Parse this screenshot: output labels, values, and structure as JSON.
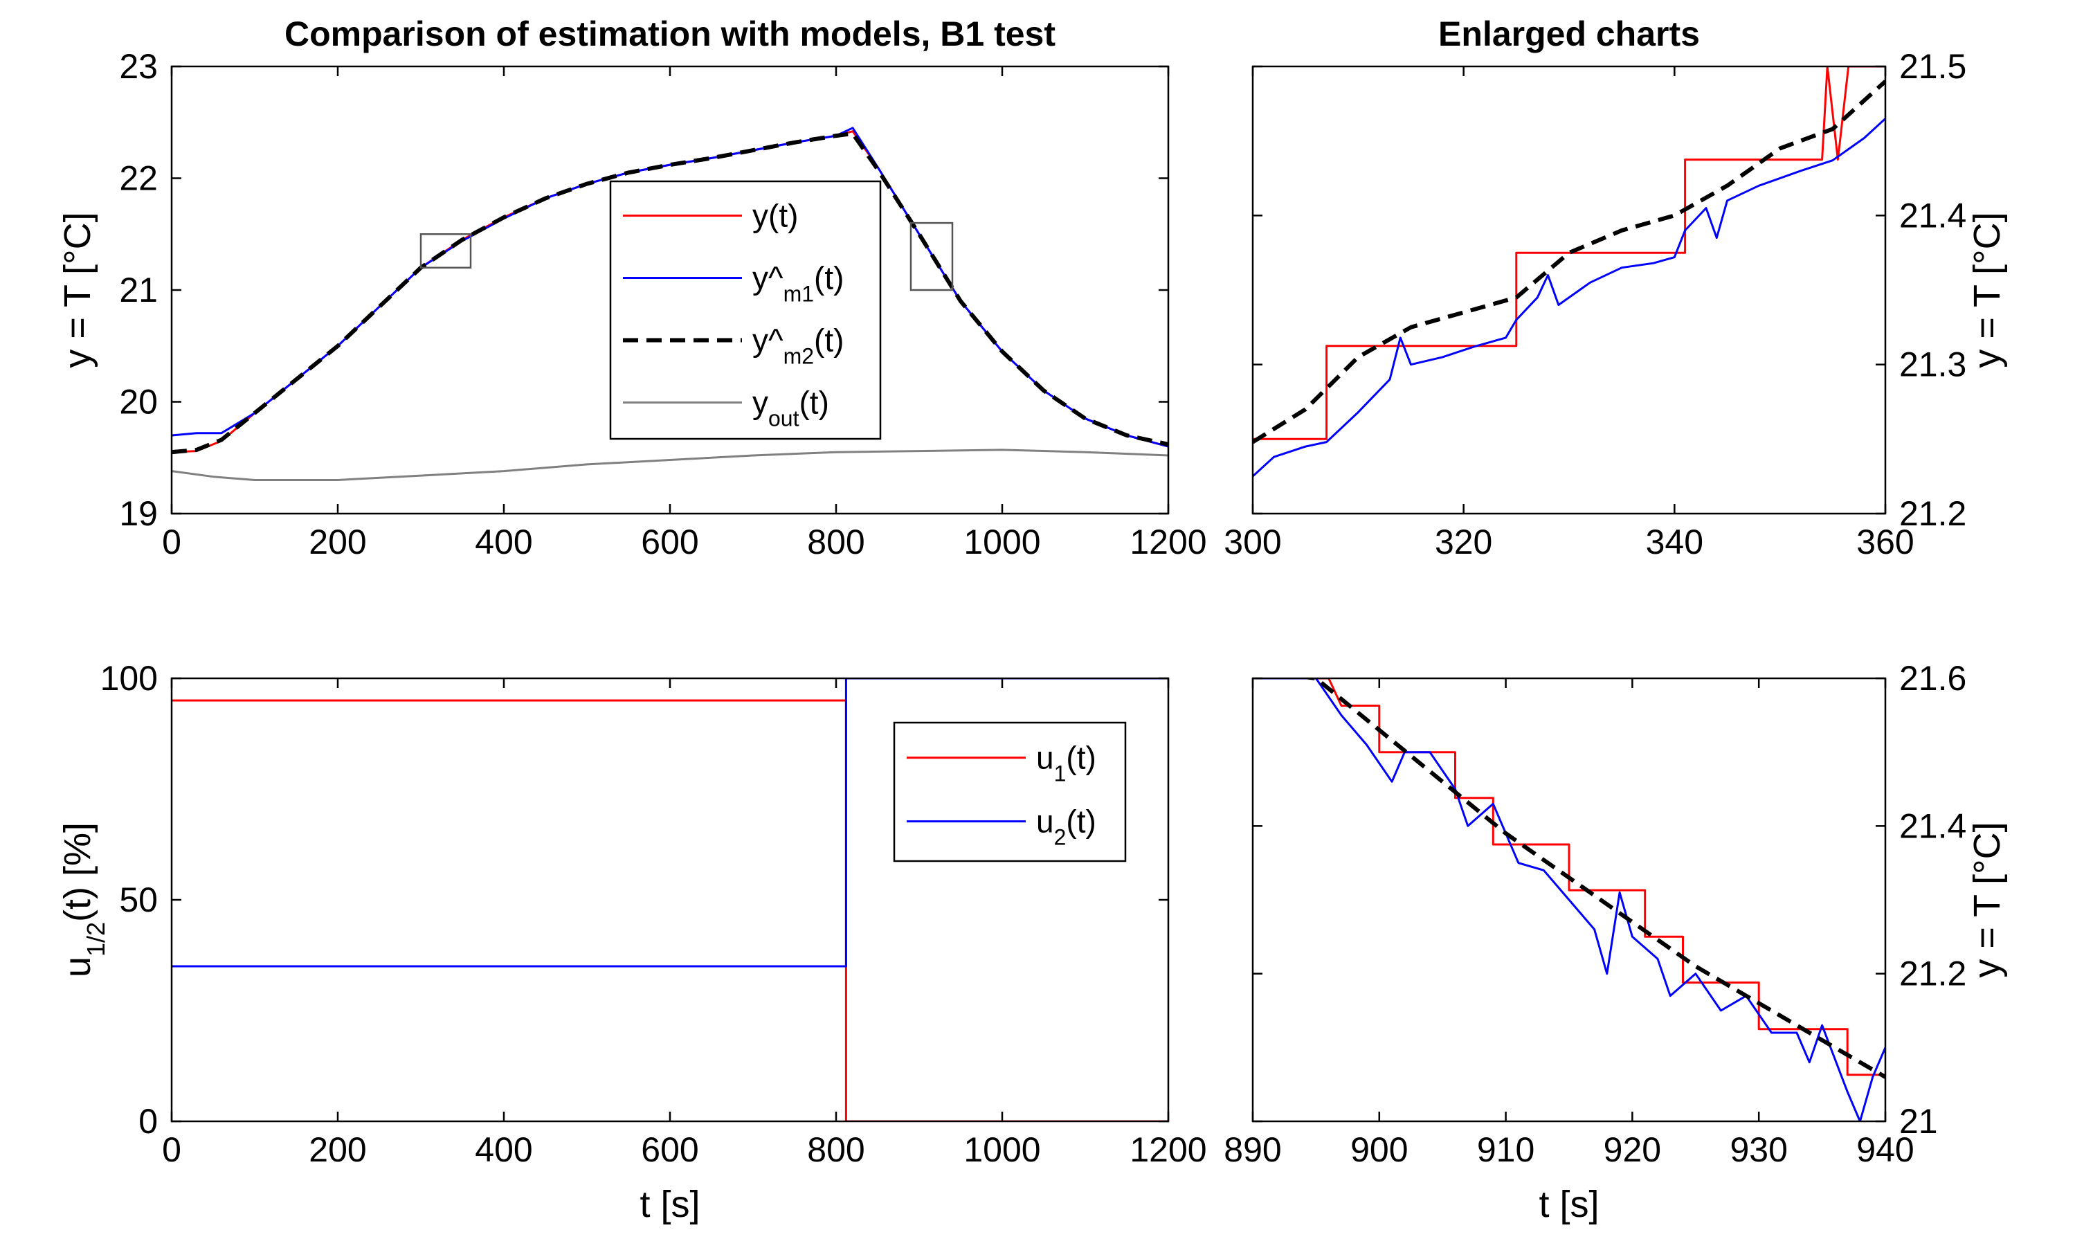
{
  "chart_data": [
    {
      "id": "top-left",
      "type": "line",
      "title": "Comparison of estimation with models, B1 test",
      "ylabel": "y = T [°C]",
      "xlabel": "",
      "xlim": [
        0,
        1200
      ],
      "ylim": [
        19,
        23
      ],
      "xticks": [
        0,
        200,
        400,
        600,
        800,
        1000,
        1200
      ],
      "yticks": [
        19,
        20,
        21,
        22,
        23
      ],
      "legend_position": "center",
      "legend": [
        "y(t)",
        "y^m1(t)",
        "y^m2(t)",
        "yout(t)"
      ],
      "zoom_boxes": [
        {
          "x": [
            300,
            360
          ],
          "y": [
            21.2,
            21.5
          ]
        },
        {
          "x": [
            890,
            940
          ],
          "y": [
            21.0,
            21.6
          ]
        }
      ],
      "series": [
        {
          "name": "y(t)",
          "color": "#ff0000",
          "style": "solid",
          "x": [
            0,
            30,
            60,
            100,
            150,
            200,
            250,
            300,
            350,
            400,
            450,
            500,
            550,
            600,
            650,
            700,
            750,
            800,
            820,
            850,
            900,
            950,
            1000,
            1050,
            1100,
            1150,
            1200
          ],
          "y": [
            19.55,
            19.56,
            19.65,
            19.9,
            20.2,
            20.5,
            20.85,
            21.2,
            21.45,
            21.65,
            21.82,
            21.95,
            22.05,
            22.12,
            22.18,
            22.25,
            22.32,
            22.38,
            22.42,
            22.1,
            21.5,
            20.9,
            20.45,
            20.1,
            19.85,
            19.7,
            19.6
          ]
        },
        {
          "name": "y^m1(t)",
          "color": "#0000ff",
          "style": "solid",
          "x": [
            0,
            30,
            60,
            100,
            150,
            200,
            250,
            300,
            350,
            400,
            450,
            500,
            550,
            600,
            650,
            700,
            750,
            800,
            820,
            850,
            900,
            950,
            1000,
            1050,
            1100,
            1150,
            1200
          ],
          "y": [
            19.7,
            19.72,
            19.72,
            19.9,
            20.2,
            20.5,
            20.85,
            21.2,
            21.44,
            21.64,
            21.82,
            21.95,
            22.05,
            22.12,
            22.18,
            22.25,
            22.32,
            22.38,
            22.45,
            22.1,
            21.5,
            20.9,
            20.45,
            20.1,
            19.85,
            19.7,
            19.6
          ]
        },
        {
          "name": "y^m2(t)",
          "color": "#000000",
          "style": "dashed",
          "x": [
            0,
            30,
            60,
            100,
            150,
            200,
            250,
            300,
            350,
            400,
            450,
            500,
            550,
            600,
            650,
            700,
            750,
            800,
            820,
            850,
            900,
            950,
            1000,
            1050,
            1100,
            1150,
            1200
          ],
          "y": [
            19.55,
            19.57,
            19.66,
            19.9,
            20.2,
            20.5,
            20.85,
            21.2,
            21.45,
            21.65,
            21.82,
            21.95,
            22.05,
            22.12,
            22.18,
            22.25,
            22.32,
            22.38,
            22.4,
            22.08,
            21.5,
            20.9,
            20.45,
            20.1,
            19.85,
            19.7,
            19.62
          ]
        },
        {
          "name": "yout(t)",
          "color": "#808080",
          "style": "solid",
          "x": [
            0,
            50,
            100,
            200,
            300,
            400,
            500,
            600,
            700,
            800,
            900,
            1000,
            1100,
            1200
          ],
          "y": [
            19.38,
            19.33,
            19.3,
            19.3,
            19.34,
            19.38,
            19.44,
            19.48,
            19.52,
            19.55,
            19.56,
            19.57,
            19.55,
            19.52
          ]
        }
      ]
    },
    {
      "id": "top-right",
      "type": "line",
      "title": "Enlarged charts",
      "ylabel": "y = T [°C]",
      "xlabel": "",
      "xlim": [
        300,
        360
      ],
      "ylim": [
        21.2,
        21.5
      ],
      "xticks": [
        300,
        320,
        340,
        360
      ],
      "yticks": [
        21.2,
        21.3,
        21.4,
        21.5
      ],
      "series": [
        {
          "name": "y(t)",
          "color": "#ff0000",
          "style": "solid",
          "x": [
            300,
            307,
            307,
            325,
            325,
            341,
            341,
            354,
            354.5,
            355.5,
            356.5,
            360
          ],
          "y": [
            21.25,
            21.25,
            21.3125,
            21.3125,
            21.375,
            21.375,
            21.4375,
            21.4375,
            21.5,
            21.4375,
            21.5,
            21.5
          ]
        },
        {
          "name": "y^m1(t)",
          "color": "#0000ff",
          "style": "solid",
          "x": [
            300,
            302,
            305,
            307,
            310,
            313,
            314,
            315,
            318,
            321,
            324,
            325,
            327,
            328,
            329,
            332,
            335,
            338,
            340,
            341,
            343,
            344,
            345,
            348,
            352,
            355,
            358,
            360
          ],
          "y": [
            21.225,
            21.238,
            21.245,
            21.248,
            21.268,
            21.29,
            21.318,
            21.3,
            21.305,
            21.312,
            21.318,
            21.33,
            21.345,
            21.36,
            21.34,
            21.355,
            21.365,
            21.368,
            21.372,
            21.39,
            21.405,
            21.385,
            21.41,
            21.42,
            21.43,
            21.437,
            21.452,
            21.465
          ]
        },
        {
          "name": "y^m2(t)",
          "color": "#000000",
          "style": "dashed",
          "x": [
            300,
            305,
            310,
            315,
            320,
            325,
            330,
            335,
            340,
            345,
            350,
            355,
            360
          ],
          "y": [
            21.248,
            21.27,
            21.305,
            21.325,
            21.335,
            21.345,
            21.375,
            21.39,
            21.4,
            21.42,
            21.445,
            21.458,
            21.49
          ]
        }
      ]
    },
    {
      "id": "bottom-left",
      "type": "line",
      "title": "",
      "ylabel": "u1/2(t) [%]",
      "xlabel": "t [s]",
      "xlim": [
        0,
        1200
      ],
      "ylim": [
        0,
        100
      ],
      "xticks": [
        0,
        200,
        400,
        600,
        800,
        1000,
        1200
      ],
      "yticks": [
        0,
        50,
        100
      ],
      "legend_position": "upper-right",
      "legend": [
        "u1(t)",
        "u2(t)"
      ],
      "series": [
        {
          "name": "u1(t)",
          "color": "#ff0000",
          "style": "solid",
          "x": [
            0,
            812,
            812,
            1200
          ],
          "y": [
            95,
            95,
            0,
            0
          ]
        },
        {
          "name": "u2(t)",
          "color": "#0000ff",
          "style": "solid",
          "x": [
            0,
            812,
            812,
            1200
          ],
          "y": [
            35,
            35,
            100,
            100
          ]
        }
      ]
    },
    {
      "id": "bottom-right",
      "type": "line",
      "title": "",
      "ylabel": "y = T [°C]",
      "xlabel": "t [s]",
      "xlim": [
        890,
        940
      ],
      "ylim": [
        21.0,
        21.6
      ],
      "xticks": [
        890,
        900,
        910,
        920,
        930,
        940
      ],
      "yticks": [
        21.0,
        21.2,
        21.4,
        21.6
      ],
      "series": [
        {
          "name": "y(t)",
          "color": "#ff0000",
          "style": "solid",
          "x": [
            890,
            895,
            896,
            897,
            900,
            900,
            906,
            906,
            909,
            909,
            915,
            915,
            921,
            921,
            924,
            924,
            930,
            930,
            936,
            936,
            937,
            937,
            940
          ],
          "y": [
            21.6,
            21.6,
            21.6,
            21.563,
            21.563,
            21.5,
            21.5,
            21.438,
            21.438,
            21.375,
            21.375,
            21.313,
            21.313,
            21.25,
            21.25,
            21.188,
            21.188,
            21.125,
            21.125,
            21.125,
            21.125,
            21.063,
            21.063
          ]
        },
        {
          "name": "y^m1(t)",
          "color": "#0000ff",
          "style": "solid",
          "x": [
            890,
            894,
            895,
            897,
            899,
            901,
            902,
            904,
            906,
            907,
            909,
            911,
            913,
            915,
            917,
            918,
            919,
            920,
            922,
            923,
            925,
            927,
            929,
            931,
            933,
            934,
            935,
            937,
            938,
            939,
            940
          ],
          "y": [
            21.6,
            21.6,
            21.6,
            21.55,
            21.51,
            21.46,
            21.5,
            21.5,
            21.45,
            21.4,
            21.43,
            21.35,
            21.34,
            21.3,
            21.26,
            21.2,
            21.31,
            21.25,
            21.22,
            21.17,
            21.2,
            21.15,
            21.17,
            21.12,
            21.12,
            21.08,
            21.13,
            21.04,
            21.0,
            21.06,
            21.1
          ]
        },
        {
          "name": "y^m2(t)",
          "color": "#000000",
          "style": "dashed",
          "x": [
            890,
            895,
            900,
            905,
            910,
            915,
            920,
            925,
            930,
            935,
            940
          ],
          "y": [
            21.61,
            21.6,
            21.53,
            21.46,
            21.39,
            21.33,
            21.27,
            21.21,
            21.16,
            21.11,
            21.06
          ]
        }
      ]
    }
  ]
}
